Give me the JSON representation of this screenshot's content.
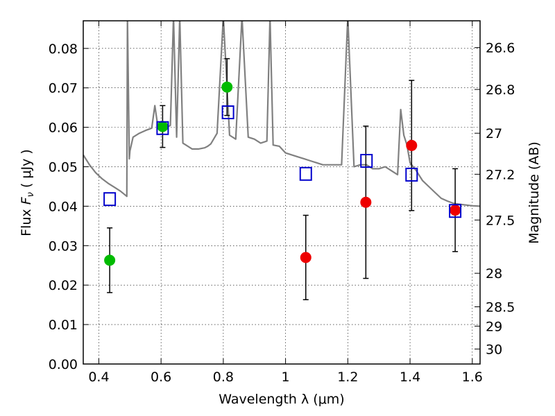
{
  "chart_data": {
    "type": "scatter",
    "xlabel": "Wavelength  λ (μm)",
    "ylabel": "Flux  F_ν  ( μJy )",
    "ylabel_parts": {
      "pre": "Flux  ",
      "main": "F",
      "sub": "ν",
      "post": "  ( μJy )"
    },
    "y2label": "Magnitude (AB)",
    "xlim": [
      0.35,
      1.625
    ],
    "ylim": [
      0.0,
      0.087
    ],
    "grid": true,
    "xticks": [
      0.4,
      0.6,
      0.8,
      1.0,
      1.2,
      1.4,
      1.6
    ],
    "xtick_labels": [
      "0.4",
      "0.6",
      "0.8",
      "1",
      "1.2",
      "1.4",
      "1.6"
    ],
    "yticks": [
      0.0,
      0.01,
      0.02,
      0.03,
      0.04,
      0.05,
      0.06,
      0.07,
      0.08
    ],
    "ytick_labels": [
      "0.00",
      "0.01",
      "0.02",
      "0.03",
      "0.04",
      "0.05",
      "0.06",
      "0.07",
      "0.08"
    ],
    "y2ticks": [
      {
        "label": "26.6",
        "flux": 0.0802
      },
      {
        "label": "26.8",
        "flux": 0.0696
      },
      {
        "label": "27",
        "flux": 0.0585
      },
      {
        "label": "27.2",
        "flux": 0.0481
      },
      {
        "label": "27.5",
        "flux": 0.0365
      },
      {
        "label": "28",
        "flux": 0.023
      },
      {
        "label": "28.5",
        "flux": 0.0145
      },
      {
        "label": "29",
        "flux": 0.0096
      },
      {
        "label": "30",
        "flux": 0.0038
      }
    ],
    "colors": {
      "model": "#808080",
      "observed_optical": "#00bb00",
      "observed_nir": "#ee0000",
      "model_photometry": "#0000cc",
      "errorbar": "#000000"
    },
    "series": [
      {
        "kind": "line",
        "x": [
          0.35,
          0.37,
          0.39,
          0.41,
          0.43,
          0.45,
          0.47,
          0.49,
          0.492,
          0.498,
          0.5,
          0.51,
          0.53,
          0.55,
          0.57,
          0.58,
          0.59,
          0.6,
          0.61,
          0.62,
          0.63,
          0.64,
          0.65,
          0.66,
          0.67,
          0.68,
          0.7,
          0.72,
          0.74,
          0.75,
          0.76,
          0.78,
          0.8,
          0.82,
          0.84,
          0.86,
          0.88,
          0.9,
          0.92,
          0.94,
          0.95,
          0.96,
          0.98,
          1.0,
          1.02,
          1.04,
          1.06,
          1.08,
          1.1,
          1.12,
          1.14,
          1.16,
          1.18,
          1.2,
          1.22,
          1.24,
          1.26,
          1.28,
          1.3,
          1.32,
          1.34,
          1.36,
          1.37,
          1.38,
          1.39,
          1.4,
          1.42,
          1.44,
          1.46,
          1.48,
          1.5,
          1.52,
          1.54,
          1.56,
          1.58,
          1.6,
          1.625
        ],
        "y": [
          0.053,
          0.0505,
          0.0485,
          0.047,
          0.0458,
          0.0448,
          0.0438,
          0.0425,
          0.088,
          0.052,
          0.054,
          0.0575,
          0.0585,
          0.0592,
          0.0598,
          0.0655,
          0.06,
          0.0598,
          0.0597,
          0.06,
          0.0605,
          0.088,
          0.0575,
          0.088,
          0.056,
          0.0555,
          0.0545,
          0.0545,
          0.0548,
          0.0552,
          0.0558,
          0.0585,
          0.088,
          0.058,
          0.057,
          0.088,
          0.0575,
          0.057,
          0.056,
          0.0565,
          0.088,
          0.0555,
          0.0552,
          0.0535,
          0.053,
          0.0525,
          0.052,
          0.0515,
          0.051,
          0.0505,
          0.0505,
          0.0505,
          0.0505,
          0.088,
          0.05,
          0.0505,
          0.0505,
          0.0495,
          0.0495,
          0.05,
          0.049,
          0.048,
          0.0645,
          0.058,
          0.0555,
          0.051,
          0.049,
          0.0465,
          0.045,
          0.0435,
          0.042,
          0.0413,
          0.0407,
          0.0405,
          0.0403,
          0.0401,
          0.04
        ]
      },
      {
        "kind": "points",
        "marker": "circle",
        "color": "#00bb00",
        "points": [
          {
            "x": 0.435,
            "y": 0.0263,
            "err": 0.0082
          },
          {
            "x": 0.605,
            "y": 0.0602,
            "err": 0.0053
          },
          {
            "x": 0.812,
            "y": 0.0702,
            "err": 0.0072
          }
        ]
      },
      {
        "kind": "points",
        "marker": "circle",
        "color": "#ee0000",
        "points": [
          {
            "x": 1.065,
            "y": 0.027,
            "err": 0.0107
          },
          {
            "x": 1.258,
            "y": 0.041,
            "err": 0.0193
          },
          {
            "x": 1.405,
            "y": 0.0554,
            "err": 0.0165
          },
          {
            "x": 1.545,
            "y": 0.039,
            "err": 0.0105
          }
        ]
      },
      {
        "kind": "points",
        "marker": "square",
        "color": "#0000cc",
        "points": [
          {
            "x": 0.435,
            "y": 0.0418
          },
          {
            "x": 0.605,
            "y": 0.0598
          },
          {
            "x": 0.815,
            "y": 0.0638
          },
          {
            "x": 1.065,
            "y": 0.0482
          },
          {
            "x": 1.26,
            "y": 0.0515
          },
          {
            "x": 1.405,
            "y": 0.048
          },
          {
            "x": 1.545,
            "y": 0.0388
          }
        ]
      }
    ]
  }
}
